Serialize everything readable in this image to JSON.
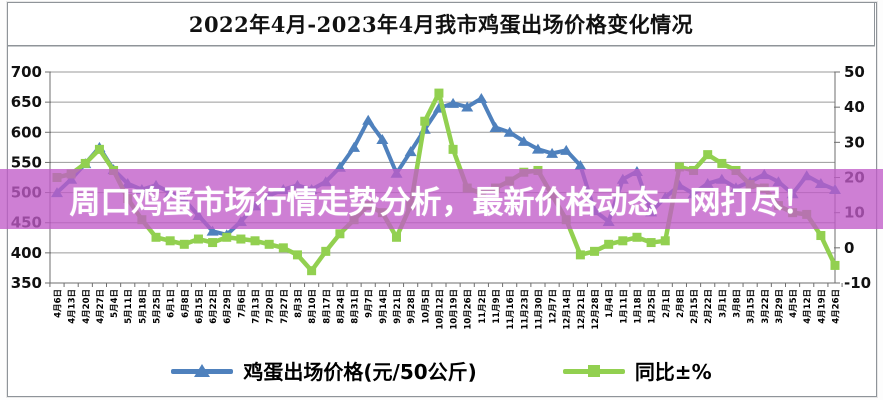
{
  "title": "2022年4月-2023年4月我市鸡蛋出场价格变化情况",
  "overlay_banner": {
    "text": "周口鸡蛋市场行情走势分析，最新价格动态一网打尽！",
    "bg_color": "#C05BC8",
    "bg_opacity": 0.78,
    "text_color": "#FFFFFF"
  },
  "legend": {
    "items": [
      {
        "label": "鸡蛋出场价格(元/50公斤)",
        "marker": "triangle",
        "color": "#4F81BD"
      },
      {
        "label": "同比±%",
        "marker": "square",
        "color": "#92D050"
      }
    ]
  },
  "chart_data": {
    "type": "line",
    "title": "2022年4月-2023年4月我市鸡蛋出场价格变化情况",
    "grid": true,
    "legend_position": "bottom",
    "categories": [
      "4月6日",
      "4月13日",
      "4月20日",
      "4月27日",
      "5月4日",
      "5月11日",
      "5月18日",
      "5月25日",
      "6月1日",
      "6月8日",
      "6月15日",
      "6月22日",
      "6月29日",
      "7月6日",
      "7月13日",
      "7月20日",
      "7月27日",
      "8月3日",
      "8月10日",
      "8月17日",
      "8月24日",
      "8月31日",
      "9月7日",
      "9月14日",
      "9月21日",
      "9月28日",
      "10月5日",
      "10月12日",
      "10月19日",
      "10月26日",
      "11月2日",
      "11月9日",
      "11月16日",
      "11月23日",
      "11月30日",
      "12月7日",
      "12月14日",
      "12月21日",
      "12月28日",
      "1月4日",
      "1月11日",
      "1月18日",
      "1月25日",
      "2月1日",
      "2月8日",
      "2月15日",
      "2月22日",
      "3月1日",
      "3月8日",
      "3月15日",
      "3月22日",
      "3月29日",
      "4月5日",
      "4月12日",
      "4月19日",
      "4月26日"
    ],
    "left_axis": {
      "label": "鸡蛋出场价格(元/50公斤)",
      "min": 350,
      "max": 700,
      "step": 50,
      "ticks": [
        700,
        650,
        600,
        550,
        500,
        450,
        400,
        350
      ]
    },
    "right_axis": {
      "label": "同比±%",
      "min": -10,
      "max": 50,
      "step": 10,
      "ticks": [
        50,
        40,
        30,
        20,
        10,
        0,
        -10
      ]
    },
    "series": [
      {
        "name": "鸡蛋出场价格(元/50公斤)",
        "axis": "left",
        "color": "#4F81BD",
        "marker": "triangle",
        "values": [
          500,
          522,
          548,
          575,
          538,
          515,
          505,
          512,
          500,
          488,
          462,
          436,
          430,
          452,
          478,
          495,
          505,
          512,
          505,
          518,
          542,
          575,
          620,
          588,
          532,
          568,
          605,
          640,
          648,
          642,
          656,
          608,
          600,
          585,
          572,
          565,
          570,
          545,
          470,
          452,
          522,
          535,
          468,
          492,
          512,
          498,
          515,
          522,
          508,
          518,
          530,
          518,
          498,
          528,
          515,
          505
        ]
      },
      {
        "name": "同比±%",
        "axis": "right",
        "color": "#92D050",
        "marker": "square",
        "values": [
          20,
          21,
          24,
          28,
          22,
          14,
          8,
          3,
          2,
          1,
          2.5,
          1.5,
          3,
          2.5,
          2,
          1,
          0,
          -2,
          -6.5,
          -1,
          4,
          8,
          12,
          10,
          3,
          12,
          36,
          44,
          28,
          17,
          15.5,
          17,
          19,
          21.5,
          22,
          15,
          8,
          -2,
          -1,
          1,
          2,
          3,
          1.5,
          2,
          23,
          22,
          26.5,
          24,
          22,
          18,
          17,
          12,
          10,
          9.5,
          3.5,
          -5
        ]
      }
    ]
  }
}
